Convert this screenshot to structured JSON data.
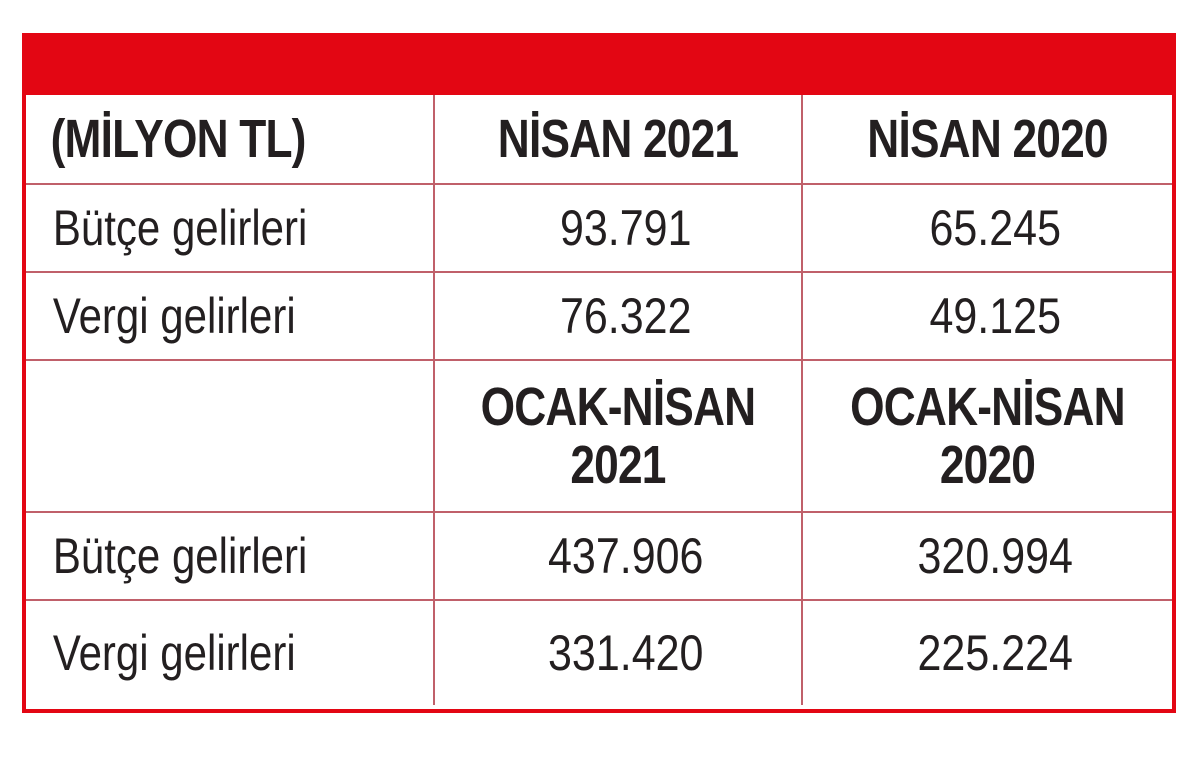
{
  "colors": {
    "accent": "#e30613",
    "grid": "#c0606a",
    "text": "#231f20"
  },
  "table": {
    "unit_header": "(MİLYON TL)",
    "section1": {
      "col2_header": "NİSAN 2021",
      "col3_header": "NİSAN 2020",
      "rows": [
        {
          "label": "Bütçe gelirleri",
          "v2021": "93.791",
          "v2020": "65.245"
        },
        {
          "label": "Vergi gelirleri",
          "v2021": "76.322",
          "v2020": "49.125"
        }
      ]
    },
    "section2": {
      "col2_header_line1": "OCAK-NİSAN",
      "col2_header_line2": "2021",
      "col3_header_line1": "OCAK-NİSAN",
      "col3_header_line2": "2020",
      "rows": [
        {
          "label": "Bütçe gelirleri",
          "v2021": "437.906",
          "v2020": "320.994"
        },
        {
          "label": "Vergi gelirleri",
          "v2021": "331.420",
          "v2020": "225.224"
        }
      ]
    }
  }
}
